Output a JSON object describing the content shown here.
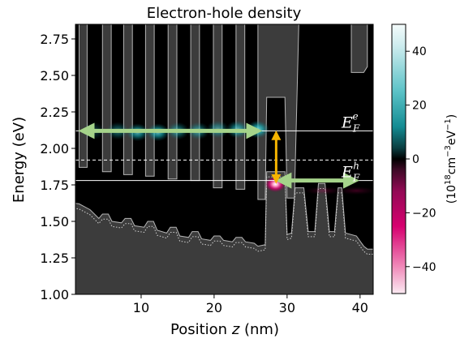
{
  "chart_data": {
    "type": "heatmap",
    "title": "Electron-hole density",
    "xlabel_text": "Position ",
    "xlabel_var": "z",
    "xlabel_unit": " (nm)",
    "ylabel": "Energy (eV)",
    "xlim": [
      0,
      42
    ],
    "ylim": [
      1.0,
      2.85
    ],
    "xticks": [
      10,
      20,
      30,
      40
    ],
    "yticks": [
      "1.00",
      "1.25",
      "1.50",
      "1.75",
      "2.00",
      "2.25",
      "2.50",
      "2.75"
    ],
    "colorbar": {
      "ticks": [
        40,
        20,
        0,
        -20,
        -40
      ],
      "range": [
        -50,
        50
      ],
      "label_prefix": "(10",
      "label_sup1": "18",
      "label_mid": "cm",
      "label_sup2": "−3",
      "label_mid2": "eV",
      "label_sup3": "−1",
      "label_suffix": ")",
      "colors": {
        "positive": "#1aa5ad",
        "zero": "#000000",
        "negative": "#d6006f"
      }
    },
    "annotations": {
      "fermi_electron": {
        "base": "E",
        "sub": "F",
        "sup": "e",
        "energy": 2.12
      },
      "fermi_hole": {
        "base": "E",
        "sub": "F",
        "sup": "h",
        "energy": 1.78
      },
      "midgap_dashed_energy": 1.92
    },
    "arrows": [
      {
        "name": "electron-range-arrow",
        "x1": 2.5,
        "x2": 25.5,
        "y": 2.12,
        "color": "#a5d38a"
      },
      {
        "name": "hole-range-arrow",
        "x1": 29.5,
        "x2": 38.8,
        "y": 1.78,
        "color": "#a5d38a"
      },
      {
        "name": "gap-arrow",
        "x": 28.5,
        "y1": 2.09,
        "y2": 1.79,
        "color": "#f5b400"
      }
    ],
    "electron_blobs": [
      {
        "z": 3.5,
        "e": 2.12,
        "a": 0.25
      },
      {
        "z": 6.8,
        "e": 2.12,
        "a": 0.45
      },
      {
        "z": 9.5,
        "e": 2.11,
        "a": 0.75
      },
      {
        "z": 12.3,
        "e": 2.11,
        "a": 0.8
      },
      {
        "z": 15.0,
        "e": 2.12,
        "a": 0.55
      },
      {
        "z": 17.8,
        "e": 2.12,
        "a": 0.55
      },
      {
        "z": 20.5,
        "e": 2.13,
        "a": 0.55
      },
      {
        "z": 23.2,
        "e": 2.13,
        "a": 0.7
      },
      {
        "z": 26.0,
        "e": 2.13,
        "a": 0.9
      }
    ],
    "hole_blobs": [
      {
        "z": 28.4,
        "e": 1.755,
        "a": 1.0
      },
      {
        "z": 35.0,
        "e": 1.71,
        "a": 0.35
      },
      {
        "z": 39.5,
        "e": 1.71,
        "a": 0.35
      }
    ],
    "conduction_band": [
      [
        0.0,
        2.85
      ],
      [
        1.5,
        2.85
      ],
      [
        1.5,
        1.87
      ],
      [
        2.6,
        1.87
      ],
      [
        2.6,
        2.85
      ],
      [
        4.7,
        2.85
      ],
      [
        4.7,
        1.84
      ],
      [
        5.9,
        1.84
      ],
      [
        5.9,
        2.85
      ],
      [
        7.6,
        2.85
      ],
      [
        7.6,
        1.82
      ],
      [
        8.8,
        1.82
      ],
      [
        8.8,
        2.85
      ],
      [
        10.6,
        2.85
      ],
      [
        10.6,
        1.81
      ],
      [
        11.8,
        1.81
      ],
      [
        11.8,
        2.85
      ],
      [
        13.7,
        2.85
      ],
      [
        13.7,
        1.79
      ],
      [
        14.9,
        1.79
      ],
      [
        14.9,
        2.85
      ],
      [
        16.8,
        2.85
      ],
      [
        16.8,
        1.78
      ],
      [
        18.0,
        1.78
      ],
      [
        18.0,
        2.85
      ],
      [
        19.9,
        2.85
      ],
      [
        19.9,
        1.73
      ],
      [
        21.1,
        1.73
      ],
      [
        21.1,
        2.85
      ],
      [
        23.0,
        2.85
      ],
      [
        23.0,
        1.72
      ],
      [
        24.2,
        1.72
      ],
      [
        24.2,
        2.85
      ],
      [
        26.0,
        2.85
      ],
      [
        26.0,
        1.65
      ],
      [
        27.0,
        1.65
      ],
      [
        27.2,
        2.35
      ],
      [
        29.7,
        2.35
      ],
      [
        30.0,
        1.66
      ],
      [
        31.0,
        1.66
      ],
      [
        31.6,
        2.85
      ],
      [
        38.8,
        2.85
      ],
      [
        38.8,
        2.52
      ],
      [
        40.5,
        2.52
      ],
      [
        41.0,
        2.56
      ],
      [
        41.0,
        2.85
      ],
      [
        42.0,
        2.85
      ]
    ],
    "valence_band": [
      [
        0.0,
        1.63
      ],
      [
        1.5,
        1.62
      ],
      [
        3.0,
        1.58
      ],
      [
        4.2,
        1.52
      ],
      [
        4.7,
        1.55
      ],
      [
        5.5,
        1.55
      ],
      [
        6.0,
        1.5
      ],
      [
        7.3,
        1.49
      ],
      [
        7.8,
        1.52
      ],
      [
        8.6,
        1.52
      ],
      [
        9.1,
        1.47
      ],
      [
        10.4,
        1.46
      ],
      [
        10.9,
        1.5
      ],
      [
        11.7,
        1.5
      ],
      [
        12.2,
        1.44
      ],
      [
        13.5,
        1.42
      ],
      [
        14.0,
        1.46
      ],
      [
        14.8,
        1.46
      ],
      [
        15.3,
        1.4
      ],
      [
        16.5,
        1.39
      ],
      [
        17.0,
        1.43
      ],
      [
        17.8,
        1.43
      ],
      [
        18.3,
        1.38
      ],
      [
        19.5,
        1.37
      ],
      [
        20.0,
        1.4
      ],
      [
        20.8,
        1.4
      ],
      [
        21.3,
        1.37
      ],
      [
        22.5,
        1.36
      ],
      [
        23.0,
        1.39
      ],
      [
        23.8,
        1.39
      ],
      [
        24.3,
        1.36
      ],
      [
        25.5,
        1.35
      ],
      [
        26.0,
        1.33
      ],
      [
        27.0,
        1.34
      ],
      [
        27.2,
        1.84
      ],
      [
        29.7,
        1.84
      ],
      [
        30.0,
        1.41
      ],
      [
        30.6,
        1.42
      ],
      [
        31.1,
        1.73
      ],
      [
        32.3,
        1.73
      ],
      [
        32.9,
        1.43
      ],
      [
        33.8,
        1.43
      ],
      [
        34.3,
        1.76
      ],
      [
        35.2,
        1.76
      ],
      [
        35.8,
        1.43
      ],
      [
        36.5,
        1.43
      ],
      [
        37.0,
        1.73
      ],
      [
        37.5,
        1.73
      ],
      [
        38.0,
        1.42
      ],
      [
        39.5,
        1.4
      ],
      [
        40.5,
        1.33
      ],
      [
        41.0,
        1.31
      ],
      [
        42.0,
        1.31
      ]
    ]
  }
}
